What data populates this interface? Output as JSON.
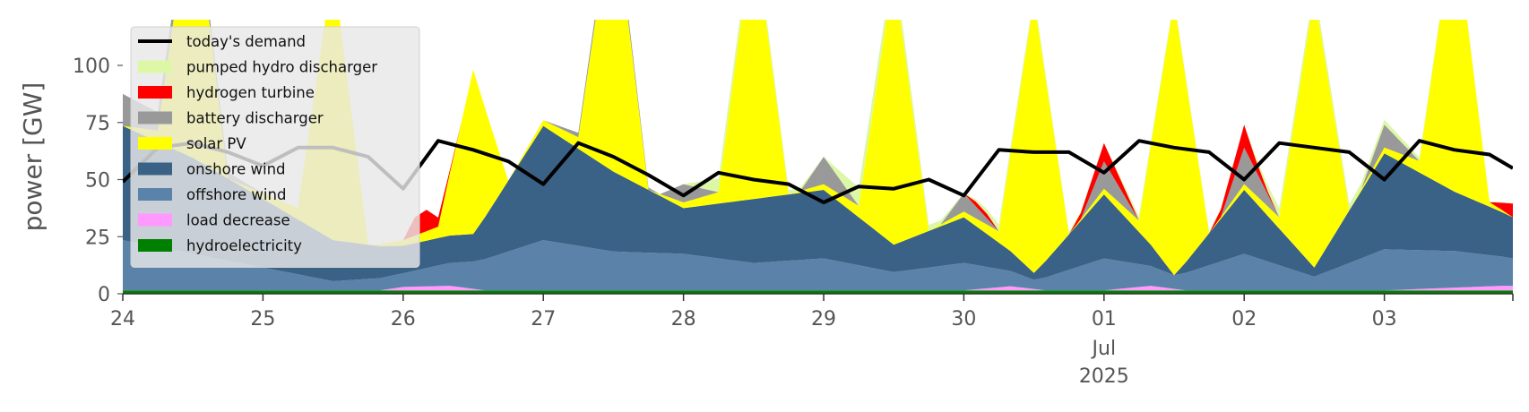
{
  "chart_data": {
    "type": "area",
    "ylabel": "power [GW]",
    "ylim": [
      0,
      120
    ],
    "yticks": [
      0,
      25,
      50,
      75,
      100
    ],
    "xlim": [
      "2025-06-24T00:00",
      "2025-07-03T22:00"
    ],
    "x_ticks": [
      {
        "x": "2025-06-24",
        "label": "24"
      },
      {
        "x": "2025-06-25",
        "label": "25"
      },
      {
        "x": "2025-06-26",
        "label": "26"
      },
      {
        "x": "2025-06-27",
        "label": "27"
      },
      {
        "x": "2025-06-28",
        "label": "28"
      },
      {
        "x": "2025-06-29",
        "label": "29"
      },
      {
        "x": "2025-06-30",
        "label": "30"
      },
      {
        "x": "2025-07-01",
        "label": "01",
        "sublabels": [
          "Jul",
          "2025"
        ]
      },
      {
        "x": "2025-07-02",
        "label": "02"
      },
      {
        "x": "2025-07-03",
        "label": "03"
      }
    ],
    "grid": false,
    "legend_position": "top-left",
    "stack_order": [
      "hydroelectricity",
      "load decrease",
      "offshore wind",
      "onshore wind",
      "solar PV",
      "battery discharger",
      "hydrogen turbine",
      "pumped hydro discharger"
    ],
    "legend_order": [
      "today's demand",
      "pumped hydro discharger",
      "hydrogen turbine",
      "battery discharger",
      "solar PV",
      "onshore wind",
      "offshore wind",
      "load decrease",
      "hydroelectricity"
    ],
    "series": [
      {
        "name": "hydroelectricity",
        "type": "area",
        "color": "#008000",
        "x": [
          "2025-06-24T00:00",
          "2025-07-03T22:00"
        ],
        "values": [
          1.5,
          1.5
        ]
      },
      {
        "name": "load decrease",
        "type": "area",
        "color": "#ff99ff",
        "x": [
          "2025-06-24T00:00",
          "2025-06-25T20:00",
          "2025-06-26T00:00",
          "2025-06-26T08:00",
          "2025-06-26T14:00",
          "2025-06-27T00:00",
          "2025-06-30T00:00",
          "2025-06-30T08:00",
          "2025-06-30T14:00",
          "2025-07-01T00:00",
          "2025-07-01T08:00",
          "2025-07-01T14:00",
          "2025-07-02T00:00",
          "2025-07-03T00:00",
          "2025-07-03T20:00",
          "2025-07-03T22:00"
        ],
        "values": [
          0,
          0,
          1.5,
          2,
          0,
          0,
          0,
          1.8,
          0,
          0,
          2,
          0,
          0,
          0,
          2,
          2
        ]
      },
      {
        "name": "offshore wind",
        "type": "area",
        "color": "#5b82a8",
        "x": [
          "2025-06-24T00:00",
          "2025-06-24T12:00",
          "2025-06-25T00:00",
          "2025-06-25T12:00",
          "2025-06-26T00:00",
          "2025-06-26T12:00",
          "2025-06-27T00:00",
          "2025-06-27T12:00",
          "2025-06-28T00:00",
          "2025-06-28T12:00",
          "2025-06-29T00:00",
          "2025-06-29T12:00",
          "2025-06-30T00:00",
          "2025-06-30T12:00",
          "2025-07-01T00:00",
          "2025-07-01T12:00",
          "2025-07-02T00:00",
          "2025-07-02T12:00",
          "2025-07-03T00:00",
          "2025-07-03T12:00",
          "2025-07-03T22:00"
        ],
        "values": [
          22,
          16,
          10,
          4,
          6,
          12,
          22,
          17,
          16,
          12,
          14,
          8,
          12,
          4,
          14,
          6,
          16,
          6,
          18,
          16,
          12
        ]
      },
      {
        "name": "onshore wind",
        "type": "area",
        "color": "#3a6186",
        "x": [
          "2025-06-24T00:00",
          "2025-06-24T12:00",
          "2025-06-25T00:00",
          "2025-06-25T12:00",
          "2025-06-26T00:00",
          "2025-06-26T12:00",
          "2025-06-27T00:00",
          "2025-06-27T12:00",
          "2025-06-28T00:00",
          "2025-06-28T12:00",
          "2025-06-29T00:00",
          "2025-06-29T12:00",
          "2025-06-30T00:00",
          "2025-06-30T12:00",
          "2025-07-01T00:00",
          "2025-07-01T12:00",
          "2025-07-02T00:00",
          "2025-07-02T12:00",
          "2025-07-03T00:00",
          "2025-07-03T12:00",
          "2025-07-03T22:00"
        ],
        "values": [
          50,
          42,
          30,
          18,
          12,
          12,
          50,
          35,
          20,
          28,
          30,
          12,
          20,
          3,
          28,
          0,
          28,
          4,
          42,
          26,
          18
        ]
      },
      {
        "name": "solar PV",
        "type": "area",
        "color": "#ffff00",
        "x": [
          "2025-06-24T00:00",
          "2025-06-24T06:00",
          "2025-06-24T12:00",
          "2025-06-24T18:00",
          "2025-06-25T06:00",
          "2025-06-25T12:00",
          "2025-06-25T18:00",
          "2025-06-26T06:00",
          "2025-06-26T12:00",
          "2025-06-26T18:00",
          "2025-06-27T06:00",
          "2025-06-27T12:00",
          "2025-06-27T18:00",
          "2025-06-28T06:00",
          "2025-06-28T12:00",
          "2025-06-28T18:00",
          "2025-06-29T06:00",
          "2025-06-29T12:00",
          "2025-06-29T18:00",
          "2025-06-30T06:00",
          "2025-06-30T12:00",
          "2025-06-30T18:00",
          "2025-07-01T06:00",
          "2025-07-01T12:00",
          "2025-07-01T18:00",
          "2025-07-02T06:00",
          "2025-07-02T12:00",
          "2025-07-02T18:00",
          "2025-07-03T06:00",
          "2025-07-03T12:00",
          "2025-07-03T18:00",
          "2025-07-03T22:00"
        ],
        "values": [
          0,
          5,
          120,
          0,
          5,
          120,
          0,
          5,
          72,
          0,
          5,
          120,
          0,
          5,
          120,
          0,
          5,
          120,
          0,
          5,
          120,
          0,
          5,
          120,
          0,
          5,
          120,
          0,
          5,
          120,
          2,
          0
        ]
      },
      {
        "name": "battery discharger",
        "type": "area",
        "color": "#999999",
        "x": [
          "2025-06-24T00:00",
          "2025-06-24T06:00",
          "2025-06-25T00:00",
          "2025-06-25T06:00",
          "2025-06-26T00:00",
          "2025-06-27T00:00",
          "2025-06-27T12:00",
          "2025-06-27T20:00",
          "2025-06-28T00:00",
          "2025-06-28T06:00",
          "2025-06-28T20:00",
          "2025-06-29T00:00",
          "2025-06-29T06:00",
          "2025-06-29T20:00",
          "2025-06-30T00:00",
          "2025-06-30T06:00",
          "2025-06-30T20:00",
          "2025-07-01T00:00",
          "2025-07-01T06:00",
          "2025-07-01T20:00",
          "2025-07-02T00:00",
          "2025-07-02T06:00",
          "2025-07-02T20:00",
          "2025-07-03T00:00",
          "2025-07-03T06:00",
          "2025-07-03T20:00",
          "2025-07-03T22:00"
        ],
        "values": [
          14,
          8,
          0,
          0,
          0,
          0,
          4,
          0,
          8,
          0,
          0,
          12,
          0,
          0,
          8,
          0,
          0,
          12,
          0,
          0,
          16,
          0,
          0,
          10,
          0,
          0,
          0
        ]
      },
      {
        "name": "hydrogen turbine",
        "type": "area",
        "color": "#ff0000",
        "x": [
          "2025-06-24T00:00",
          "2025-06-26T00:00",
          "2025-06-26T03:00",
          "2025-06-26T06:00",
          "2025-06-26T09:00",
          "2025-06-30T00:00",
          "2025-06-30T03:00",
          "2025-06-30T06:00",
          "2025-06-30T18:00",
          "2025-07-01T00:00",
          "2025-07-01T03:00",
          "2025-07-01T06:00",
          "2025-07-01T18:00",
          "2025-07-02T00:00",
          "2025-07-02T03:00",
          "2025-07-02T06:00",
          "2025-07-03T18:00",
          "2025-07-03T22:00"
        ],
        "values": [
          0,
          0,
          12,
          4,
          0,
          0,
          3,
          0,
          0,
          8,
          4,
          0,
          0,
          10,
          2,
          0,
          0,
          6
        ]
      },
      {
        "name": "pumped hydro discharger",
        "type": "area",
        "color": "#dcf7a6",
        "x": [
          "2025-06-24T00:00",
          "2025-06-28T00:00",
          "2025-06-28T06:00",
          "2025-06-29T00:00",
          "2025-06-29T06:00",
          "2025-06-30T00:00",
          "2025-06-30T06:00",
          "2025-07-01T00:00",
          "2025-07-01T06:00",
          "2025-07-02T00:00",
          "2025-07-02T06:00",
          "2025-07-03T22:00"
        ],
        "values": [
          0,
          0,
          6,
          0,
          8,
          0,
          3,
          0,
          2,
          0,
          4,
          0
        ]
      },
      {
        "name": "today's demand",
        "type": "line",
        "color": "#000000",
        "x": [
          "2025-06-24T00:00",
          "2025-06-24T06:00",
          "2025-06-24T12:00",
          "2025-06-24T18:00",
          "2025-06-25T00:00",
          "2025-06-25T06:00",
          "2025-06-25T12:00",
          "2025-06-25T18:00",
          "2025-06-26T00:00",
          "2025-06-26T06:00",
          "2025-06-26T12:00",
          "2025-06-26T18:00",
          "2025-06-27T00:00",
          "2025-06-27T06:00",
          "2025-06-27T12:00",
          "2025-06-27T18:00",
          "2025-06-28T00:00",
          "2025-06-28T06:00",
          "2025-06-28T12:00",
          "2025-06-28T18:00",
          "2025-06-29T00:00",
          "2025-06-29T06:00",
          "2025-06-29T12:00",
          "2025-06-29T18:00",
          "2025-06-30T00:00",
          "2025-06-30T06:00",
          "2025-06-30T12:00",
          "2025-06-30T18:00",
          "2025-07-01T00:00",
          "2025-07-01T06:00",
          "2025-07-01T12:00",
          "2025-07-01T18:00",
          "2025-07-02T00:00",
          "2025-07-02T06:00",
          "2025-07-02T12:00",
          "2025-07-02T18:00",
          "2025-07-03T00:00",
          "2025-07-03T06:00",
          "2025-07-03T12:00",
          "2025-07-03T18:00",
          "2025-07-03T22:00"
        ],
        "values": [
          49,
          64,
          66,
          62,
          56,
          64,
          64,
          60,
          46,
          67,
          63,
          58,
          48,
          66,
          60,
          52,
          43,
          53,
          50,
          48,
          40,
          47,
          46,
          50,
          43,
          63,
          62,
          62,
          53,
          67,
          64,
          62,
          50,
          66,
          64,
          62,
          50,
          67,
          63,
          61,
          55
        ]
      }
    ]
  }
}
